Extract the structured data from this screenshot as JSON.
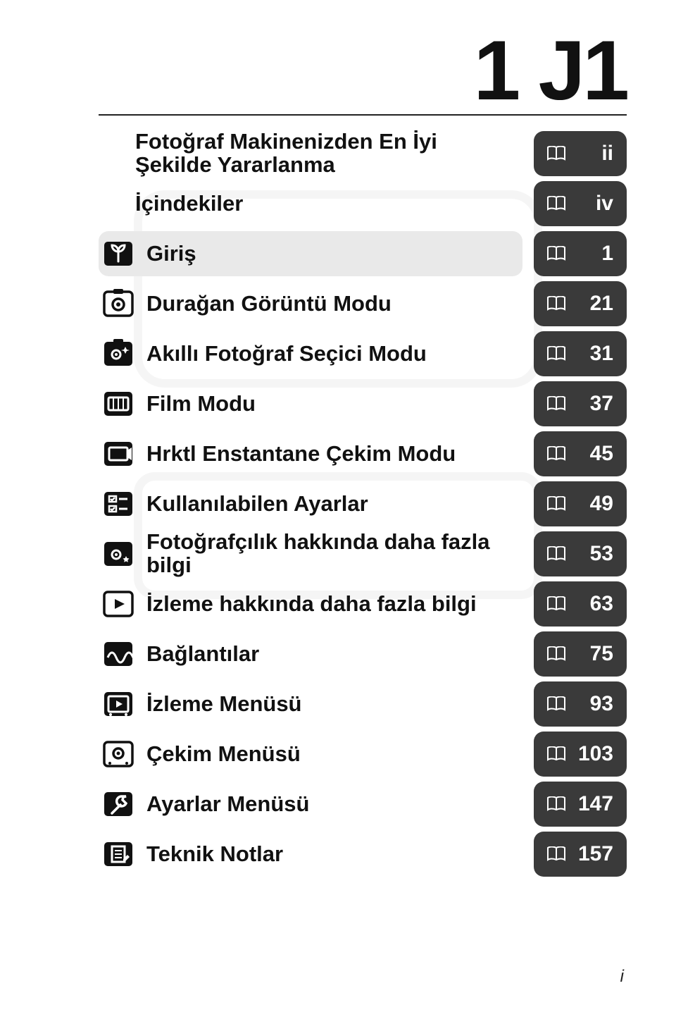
{
  "model_name": "1 J1",
  "footer": "i",
  "colors": {
    "page_box_bg": "#3a3a3a",
    "page_box_fg": "#ffffff",
    "shaded_bg": "#e9e9e9",
    "text": "#111111"
  },
  "rows": [
    {
      "label": "Fotoğraf Makinenizden En İyi Şekilde Yararlanma",
      "page": "ii",
      "icon": null,
      "shaded": false
    },
    {
      "label": "İçindekiler",
      "page": "iv",
      "icon": null,
      "shaded": false
    },
    {
      "label": "Giriş",
      "page": "1",
      "icon": "sprout",
      "shaded": true
    },
    {
      "label": "Durağan Görüntü Modu",
      "page": "21",
      "icon": "camera",
      "shaded": false
    },
    {
      "label": "Akıllı Fotoğraf Seçici Modu",
      "page": "31",
      "icon": "camera-ai",
      "shaded": false
    },
    {
      "label": "Film Modu",
      "page": "37",
      "icon": "film",
      "shaded": false
    },
    {
      "label": "Hrktl Enstantane Çekim Modu",
      "page": "45",
      "icon": "snapshot",
      "shaded": false
    },
    {
      "label": "Kullanılabilen Ayarlar",
      "page": "49",
      "icon": "checklist",
      "shaded": false
    },
    {
      "label": "Fotoğrafçılık hakkında daha fazla bilgi",
      "page": "53",
      "icon": "camera-star",
      "shaded": false
    },
    {
      "label": "İzleme hakkında daha fazla bilgi",
      "page": "63",
      "icon": "play",
      "shaded": false
    },
    {
      "label": "Bağlantılar",
      "page": "75",
      "icon": "wave",
      "shaded": false
    },
    {
      "label": "İzleme Menüsü",
      "page": "93",
      "icon": "play-menu",
      "shaded": false
    },
    {
      "label": "Çekim Menüsü",
      "page": "103",
      "icon": "cam-menu",
      "shaded": false
    },
    {
      "label": "Ayarlar Menüsü",
      "page": "147",
      "icon": "wrench",
      "shaded": false
    },
    {
      "label": "Teknik Notlar",
      "page": "157",
      "icon": "notes",
      "shaded": false
    }
  ]
}
